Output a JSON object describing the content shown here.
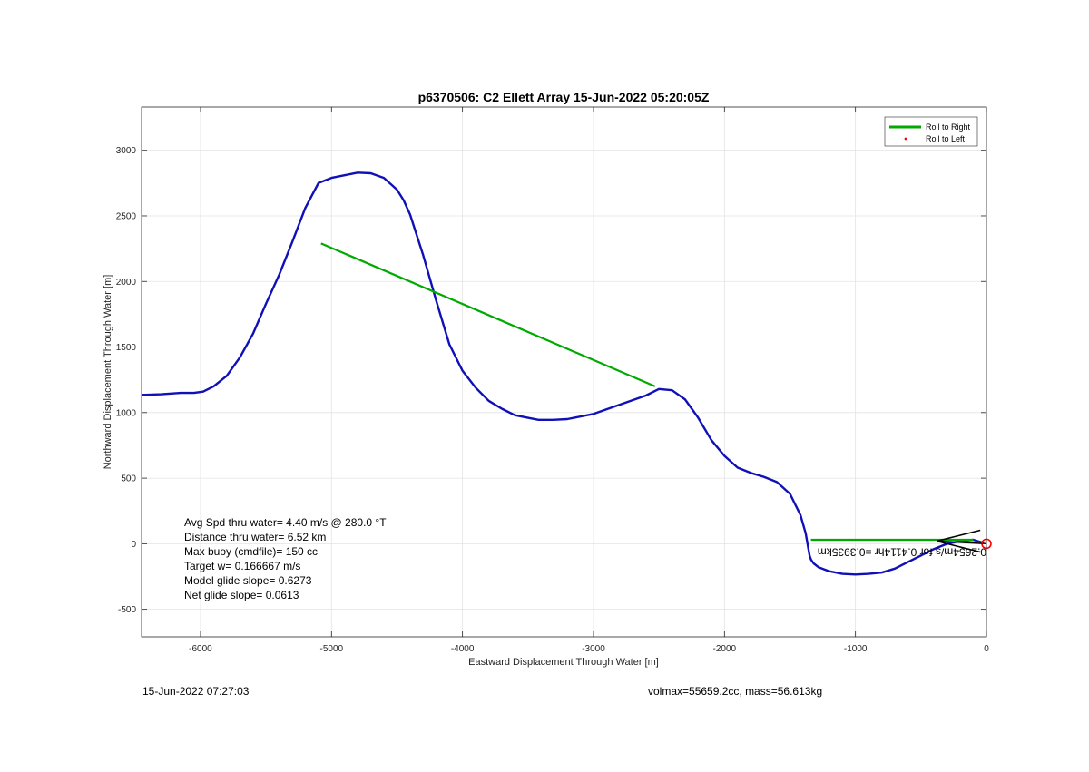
{
  "chart_data": {
    "type": "line",
    "title": "p6370506: C2 Ellett Array 15-Jun-2022 05:20:05Z",
    "xlabel": "Eastward Displacement Through Water [m]",
    "ylabel": "Northward Displacement Through Water [m]",
    "xlim": [
      -6450,
      0
    ],
    "ylim": [
      -710,
      3330
    ],
    "xticks": [
      -6000,
      -5000,
      -4000,
      -3000,
      -2000,
      -1000,
      0
    ],
    "yticks": [
      -500,
      0,
      500,
      1000,
      1500,
      2000,
      2500,
      3000
    ],
    "xtick_labels": [
      "-6000",
      "-5000",
      "-4000",
      "-3000",
      "-2000",
      "-1000",
      "0"
    ],
    "ytick_labels": [
      "-500",
      "0",
      "500",
      "1000",
      "1500",
      "2000",
      "2500",
      "3000"
    ],
    "grid": true,
    "legend_position": "top-right",
    "legend": [
      {
        "label": "Roll to Right",
        "color": "#00aa00",
        "style": "line"
      },
      {
        "label": "Roll to Left",
        "color": "#ff0000",
        "style": "dot"
      }
    ],
    "series": [
      {
        "color": "#1010b8",
        "x": [
          -6450,
          -6300,
          -6150,
          -6050,
          -5980,
          -5900,
          -5800,
          -5700,
          -5600,
          -5500,
          -5400,
          -5300,
          -5200,
          -5100,
          -5000,
          -4900,
          -4800,
          -4700,
          -4600,
          -4500,
          -4450,
          -4400,
          -4300,
          -4200,
          -4100,
          -4000,
          -3900,
          -3800,
          -3700,
          -3600,
          -3500,
          -3420,
          -3380,
          -3340,
          -3310,
          -3200,
          -3000,
          -2800,
          -2600,
          -2500,
          -2400,
          -2300,
          -2200,
          -2100,
          -2000,
          -1900,
          -1800,
          -1700,
          -1600,
          -1500,
          -1420,
          -1380,
          -1350,
          -1340,
          -1320,
          -1280,
          -1200,
          -1100,
          -1000,
          -900,
          -800,
          -700,
          -600,
          -500,
          -400,
          -300,
          -200,
          -100,
          -20
        ],
        "y": [
          1135,
          1140,
          1150,
          1150,
          1160,
          1200,
          1280,
          1420,
          1600,
          1830,
          2050,
          2300,
          2560,
          2750,
          2790,
          2810,
          2830,
          2825,
          2790,
          2700,
          2620,
          2510,
          2200,
          1850,
          1520,
          1320,
          1190,
          1090,
          1030,
          980,
          960,
          945,
          945,
          945,
          945,
          950,
          990,
          1060,
          1130,
          1180,
          1170,
          1100,
          960,
          790,
          670,
          580,
          540,
          510,
          470,
          380,
          220,
          80,
          -90,
          -120,
          -150,
          -180,
          -210,
          -230,
          -235,
          -230,
          -220,
          -190,
          -140,
          -90,
          -40,
          0,
          20,
          30,
          5
        ]
      }
    ],
    "roll_right_segments": [
      {
        "x": [
          -5080,
          -2530
        ],
        "y": [
          2290,
          1200
        ]
      },
      {
        "x": [
          -1340,
          -100
        ],
        "y": [
          30,
          30
        ]
      }
    ],
    "annotations": [
      {
        "text": "Avg Spd thru water=  4.40 m/s @ 280.0 °T"
      },
      {
        "text": "Distance thru water=  6.52 km"
      },
      {
        "text": "Max buoy (cmdfile)= 150 cc"
      },
      {
        "text": "Target w= 0.166667 m/s"
      },
      {
        "text": "Model glide slope= 0.6273"
      },
      {
        "text": "Net glide slope= 0.0613"
      }
    ],
    "current_label": "0.2654m/s for 0.4114hr =0.3935km"
  },
  "footer": {
    "timestamp": "15-Jun-2022 07:27:03",
    "glider_info": "volmax=55659.2cc, mass=56.613kg"
  }
}
